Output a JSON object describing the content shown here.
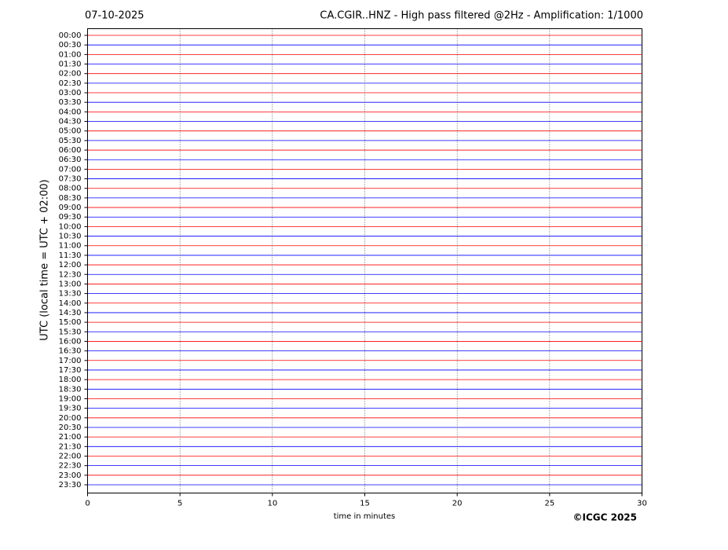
{
  "chart_data": {
    "type": "helicorder",
    "date": "07-10-2025",
    "title": "CA.CGIR..HNZ - High pass filtered @2Hz - Amplification: 1/1000",
    "x_label": "time in minutes",
    "y_label": "UTC (local time = UTC + 02:00)",
    "categories": [
      "00:00",
      "00:30",
      "01:00",
      "01:30",
      "02:00",
      "02:30",
      "03:00",
      "03:30",
      "04:00",
      "04:30",
      "05:00",
      "05:30",
      "06:00",
      "06:30",
      "07:00",
      "07:30",
      "08:00",
      "08:30",
      "09:00",
      "09:30",
      "10:00",
      "10:30",
      "11:00",
      "11:30",
      "12:00",
      "12:30",
      "13:00",
      "13:30",
      "14:00",
      "14:30",
      "15:00",
      "15:30",
      "16:00",
      "16:30",
      "17:00",
      "17:30",
      "18:00",
      "18:30",
      "19:00",
      "19:30",
      "20:00",
      "20:30",
      "21:00",
      "21:30",
      "22:00",
      "22:30",
      "23:00",
      "23:30"
    ],
    "xlim": [
      0,
      30
    ],
    "xticks": [
      0,
      5,
      10,
      15,
      20,
      25,
      30
    ],
    "grid": true,
    "colors": [
      "#ff0000",
      "#0000ff"
    ]
  },
  "copyright": "©ICGC 2025"
}
